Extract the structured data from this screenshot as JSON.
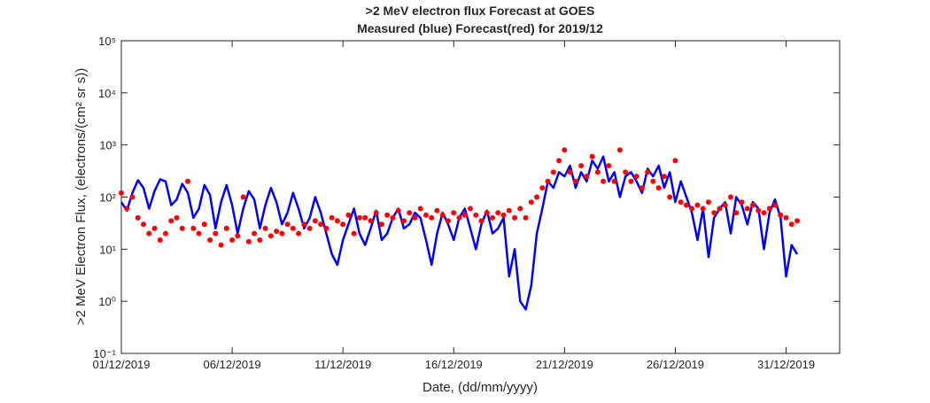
{
  "chart_data": {
    "type": "line_scatter",
    "title": ">2 MeV electron flux Forecast at GOES",
    "subtitle": "Measured (blue) Forecast(red) for 2019/12",
    "xlabel": "Date, (dd/mm/yyyy)",
    "ylabel": ">2 MeV Electron Flux, (electrons/(cm² sr s))",
    "log_y": true,
    "xlim": [
      "2019-12-01 00:00",
      "2020-01-02 10:00"
    ],
    "xticks": [
      {
        "value": "2019-12-01 00:00",
        "label": "01/12/2019"
      },
      {
        "value": "2019-12-06 00:00",
        "label": "06/12/2019"
      },
      {
        "value": "2019-12-11 00:00",
        "label": "11/12/2019"
      },
      {
        "value": "2019-12-16 00:00",
        "label": "16/12/2019"
      },
      {
        "value": "2019-12-21 00:00",
        "label": "21/12/2019"
      },
      {
        "value": "2019-12-26 00:00",
        "label": "26/12/2019"
      },
      {
        "value": "2019-12-31 00:00",
        "label": "31/12/2019"
      }
    ],
    "ylim": [
      0.1,
      100000
    ],
    "yticks": [
      {
        "value": 0.1,
        "label": "10⁻¹"
      },
      {
        "value": 1,
        "label": "10⁰"
      },
      {
        "value": 10,
        "label": "10¹"
      },
      {
        "value": 100,
        "label": "10²"
      },
      {
        "value": 1000,
        "label": "10³"
      },
      {
        "value": 10000,
        "label": "10⁴"
      },
      {
        "value": 100000,
        "label": "10⁵"
      }
    ],
    "x": [
      "2019-12-01 00:00",
      "2019-12-01 06:00",
      "2019-12-01 12:00",
      "2019-12-01 18:00",
      "2019-12-02 00:00",
      "2019-12-02 06:00",
      "2019-12-02 12:00",
      "2019-12-02 18:00",
      "2019-12-03 00:00",
      "2019-12-03 06:00",
      "2019-12-03 12:00",
      "2019-12-03 18:00",
      "2019-12-04 00:00",
      "2019-12-04 06:00",
      "2019-12-04 12:00",
      "2019-12-04 18:00",
      "2019-12-05 00:00",
      "2019-12-05 06:00",
      "2019-12-05 12:00",
      "2019-12-05 18:00",
      "2019-12-06 00:00",
      "2019-12-06 06:00",
      "2019-12-06 12:00",
      "2019-12-06 18:00",
      "2019-12-07 00:00",
      "2019-12-07 06:00",
      "2019-12-07 12:00",
      "2019-12-07 18:00",
      "2019-12-08 00:00",
      "2019-12-08 06:00",
      "2019-12-08 12:00",
      "2019-12-08 18:00",
      "2019-12-09 00:00",
      "2019-12-09 06:00",
      "2019-12-09 12:00",
      "2019-12-09 18:00",
      "2019-12-10 00:00",
      "2019-12-10 06:00",
      "2019-12-10 12:00",
      "2019-12-10 18:00",
      "2019-12-11 00:00",
      "2019-12-11 06:00",
      "2019-12-11 12:00",
      "2019-12-11 18:00",
      "2019-12-12 00:00",
      "2019-12-12 06:00",
      "2019-12-12 12:00",
      "2019-12-12 18:00",
      "2019-12-13 00:00",
      "2019-12-13 06:00",
      "2019-12-13 12:00",
      "2019-12-13 18:00",
      "2019-12-14 00:00",
      "2019-12-14 06:00",
      "2019-12-14 12:00",
      "2019-12-14 18:00",
      "2019-12-15 00:00",
      "2019-12-15 06:00",
      "2019-12-15 12:00",
      "2019-12-15 18:00",
      "2019-12-16 00:00",
      "2019-12-16 06:00",
      "2019-12-16 12:00",
      "2019-12-16 18:00",
      "2019-12-17 00:00",
      "2019-12-17 06:00",
      "2019-12-17 12:00",
      "2019-12-17 18:00",
      "2019-12-18 00:00",
      "2019-12-18 06:00",
      "2019-12-18 12:00",
      "2019-12-18 18:00",
      "2019-12-19 00:00",
      "2019-12-19 06:00",
      "2019-12-19 12:00",
      "2019-12-19 18:00",
      "2019-12-20 00:00",
      "2019-12-20 06:00",
      "2019-12-20 12:00",
      "2019-12-20 18:00",
      "2019-12-21 00:00",
      "2019-12-21 06:00",
      "2019-12-21 12:00",
      "2019-12-21 18:00",
      "2019-12-22 00:00",
      "2019-12-22 06:00",
      "2019-12-22 12:00",
      "2019-12-22 18:00",
      "2019-12-23 00:00",
      "2019-12-23 06:00",
      "2019-12-23 12:00",
      "2019-12-23 18:00",
      "2019-12-24 00:00",
      "2019-12-24 06:00",
      "2019-12-24 12:00",
      "2019-12-24 18:00",
      "2019-12-25 00:00",
      "2019-12-25 06:00",
      "2019-12-25 12:00",
      "2019-12-25 18:00",
      "2019-12-26 00:00",
      "2019-12-26 06:00",
      "2019-12-26 12:00",
      "2019-12-26 18:00",
      "2019-12-27 00:00",
      "2019-12-27 06:00",
      "2019-12-27 12:00",
      "2019-12-27 18:00",
      "2019-12-28 00:00",
      "2019-12-28 06:00",
      "2019-12-28 12:00",
      "2019-12-28 18:00",
      "2019-12-29 00:00",
      "2019-12-29 06:00",
      "2019-12-29 12:00",
      "2019-12-29 18:00",
      "2019-12-30 00:00",
      "2019-12-30 06:00",
      "2019-12-30 12:00",
      "2019-12-30 18:00",
      "2019-12-31 00:00",
      "2019-12-31 06:00",
      "2019-12-31 12:00"
    ],
    "series": [
      {
        "name": "Measured",
        "kind": "line",
        "color": "#0000ff",
        "values": [
          80,
          55,
          120,
          210,
          150,
          60,
          130,
          220,
          200,
          70,
          90,
          180,
          120,
          40,
          60,
          170,
          110,
          25,
          80,
          170,
          70,
          20,
          60,
          130,
          90,
          25,
          70,
          150,
          80,
          30,
          50,
          120,
          60,
          25,
          40,
          100,
          50,
          20,
          8,
          5,
          15,
          30,
          60,
          20,
          12,
          25,
          55,
          15,
          20,
          40,
          60,
          25,
          30,
          50,
          40,
          15,
          5,
          20,
          50,
          30,
          15,
          40,
          60,
          25,
          10,
          30,
          55,
          20,
          25,
          40,
          3,
          10,
          1,
          0.7,
          2,
          20,
          60,
          200,
          150,
          300,
          250,
          400,
          150,
          300,
          200,
          500,
          350,
          600,
          200,
          300,
          100,
          250,
          300,
          200,
          120,
          350,
          250,
          400,
          150,
          300,
          80,
          200,
          100,
          50,
          15,
          60,
          7,
          40,
          60,
          80,
          20,
          100,
          70,
          30,
          80,
          60,
          10,
          50,
          90,
          40,
          3,
          12,
          8
        ]
      },
      {
        "name": "Forecast",
        "kind": "scatter",
        "color": "#ff0000",
        "values": [
          120,
          60,
          100,
          40,
          30,
          20,
          25,
          15,
          20,
          35,
          40,
          25,
          200,
          25,
          20,
          30,
          15,
          20,
          12,
          25,
          15,
          18,
          100,
          14,
          20,
          15,
          25,
          18,
          22,
          20,
          30,
          25,
          20,
          30,
          25,
          35,
          30,
          25,
          40,
          35,
          30,
          45,
          20,
          40,
          40,
          35,
          50,
          30,
          45,
          40,
          55,
          35,
          50,
          40,
          60,
          45,
          40,
          55,
          45,
          35,
          50,
          40,
          45,
          60,
          45,
          35,
          50,
          40,
          50,
          45,
          55,
          40,
          60,
          40,
          80,
          100,
          150,
          200,
          300,
          500,
          800,
          300,
          200,
          400,
          250,
          600,
          300,
          200,
          400,
          200,
          800,
          300,
          200,
          250,
          150,
          300,
          200,
          150,
          250,
          100,
          500,
          80,
          70,
          60,
          70,
          60,
          80,
          50,
          60,
          70,
          100,
          50,
          80,
          60,
          70,
          55,
          50,
          60,
          70,
          45,
          40,
          30,
          35
        ]
      }
    ]
  }
}
